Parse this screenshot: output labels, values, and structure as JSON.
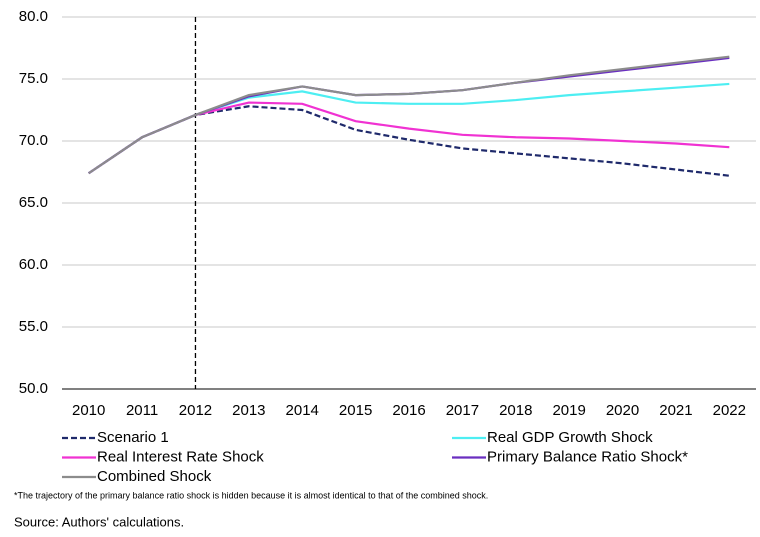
{
  "chart_data": {
    "type": "line",
    "categories": [
      "2010",
      "2011",
      "2012",
      "2013",
      "2014",
      "2015",
      "2016",
      "2017",
      "2018",
      "2019",
      "2020",
      "2021",
      "2022"
    ],
    "series": [
      {
        "name": "Scenario 1",
        "color": "#1f2a6b",
        "dashed": true,
        "values": [
          67.4,
          70.3,
          72.1,
          72.8,
          72.5,
          70.9,
          70.1,
          69.4,
          69.0,
          68.6,
          68.2,
          67.7,
          67.2
        ]
      },
      {
        "name": "Real GDP Growth Shock",
        "color": "#4deef2",
        "values": [
          67.4,
          70.3,
          72.1,
          73.5,
          74.0,
          73.1,
          73.0,
          73.0,
          73.3,
          73.7,
          74.0,
          74.3,
          74.6
        ]
      },
      {
        "name": "Real Interest Rate Shock",
        "color": "#f032d2",
        "values": [
          67.4,
          70.3,
          72.1,
          73.1,
          73.0,
          71.6,
          71.0,
          70.5,
          70.3,
          70.2,
          70.0,
          69.8,
          69.5
        ]
      },
      {
        "name": "Primary Balance Ratio Shock*",
        "color": "#6a2fc0",
        "values": [
          67.4,
          70.3,
          72.1,
          73.6,
          74.4,
          73.7,
          73.8,
          74.1,
          74.7,
          75.2,
          75.7,
          76.2,
          76.7
        ]
      },
      {
        "name": "Combined Shock",
        "color": "#8c8c8c",
        "values": [
          67.4,
          70.3,
          72.1,
          73.7,
          74.4,
          73.7,
          73.8,
          74.1,
          74.7,
          75.3,
          75.8,
          76.3,
          76.8
        ]
      }
    ],
    "ylim": [
      50,
      80
    ],
    "yticks": [
      {
        "value": 50,
        "label": "50.0"
      },
      {
        "value": 55,
        "label": "55.0"
      },
      {
        "value": 60,
        "label": "60.0"
      },
      {
        "value": 65,
        "label": "65.0"
      },
      {
        "value": 70,
        "label": "70.0"
      },
      {
        "value": 75,
        "label": "75.0"
      },
      {
        "value": 80,
        "label": "80.0"
      }
    ],
    "grid": true,
    "vline": "2012",
    "note": "*The trajectory of the primary balance ratio shock is hidden because it is almost identical to that of the combined shock.",
    "source": "Source:  Authors' calculations."
  }
}
